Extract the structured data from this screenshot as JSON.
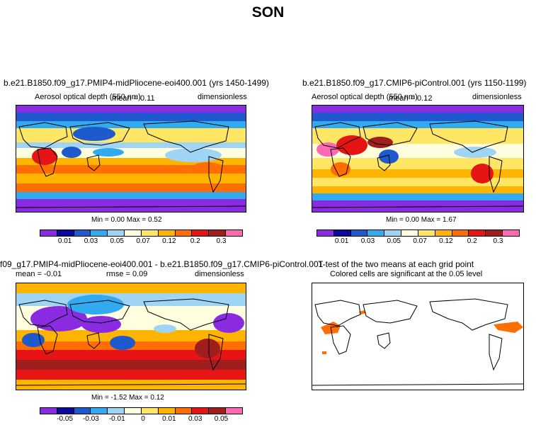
{
  "page_title": "SON",
  "panels": [
    {
      "title": "b.e21.B1850.f09_g17.PMIP4-midPliocene-eoi400.001 (yrs 1450-1499)",
      "variable": "Aerosol optical depth (550 nm)",
      "stat": "mean =   0.11",
      "units": "dimensionless",
      "minmax": "Min =     0.00  Max =     0.52"
    },
    {
      "title": "b.e21.B1850.f09_g17.CMIP6-piControl.001 (yrs 1150-1199)",
      "variable": "Aerosol optical depth (550 nm)",
      "stat": "mean =   0.12",
      "units": "dimensionless",
      "minmax": "Min =     0.00  Max =     1.67"
    },
    {
      "title": "f09_g17.PMIP4-midPliocene-eoi400.001 - b.e21.B1850.f09_g17.CMIP6-piControl.001",
      "stat": "mean =   -0.01",
      "rmse": "rmse =     0.09",
      "units": "dimensionless",
      "minmax": "Min =   -1.52  Max =     0.12"
    },
    {
      "title": "T-test of the two means at each grid point",
      "note": "Colored cells are significant at the 0.05 level"
    }
  ],
  "colorbar_abs": {
    "colors": [
      "#8a2be2",
      "#0a0a9c",
      "#1e5acd",
      "#32aaf0",
      "#a0d4f5",
      "#ffffe0",
      "#ffe664",
      "#ffb400",
      "#ff6e00",
      "#e61414",
      "#a01e1e",
      "#ff69b4"
    ],
    "labels": [
      "0.01",
      "0.03",
      "0.05",
      "0.07",
      "0.12",
      "0.2",
      "0.3"
    ]
  },
  "colorbar_diff": {
    "colors": [
      "#8a2be2",
      "#0a0a9c",
      "#1e5acd",
      "#32aaf0",
      "#a0d4f5",
      "#ffffe0",
      "#ffe664",
      "#ffb400",
      "#ff6e00",
      "#e61414",
      "#a01e1e",
      "#ff69b4"
    ],
    "labels": [
      "-0.05",
      "-0.03",
      "-0.01",
      "0",
      "0.01",
      "0.03",
      "0.05"
    ]
  }
}
